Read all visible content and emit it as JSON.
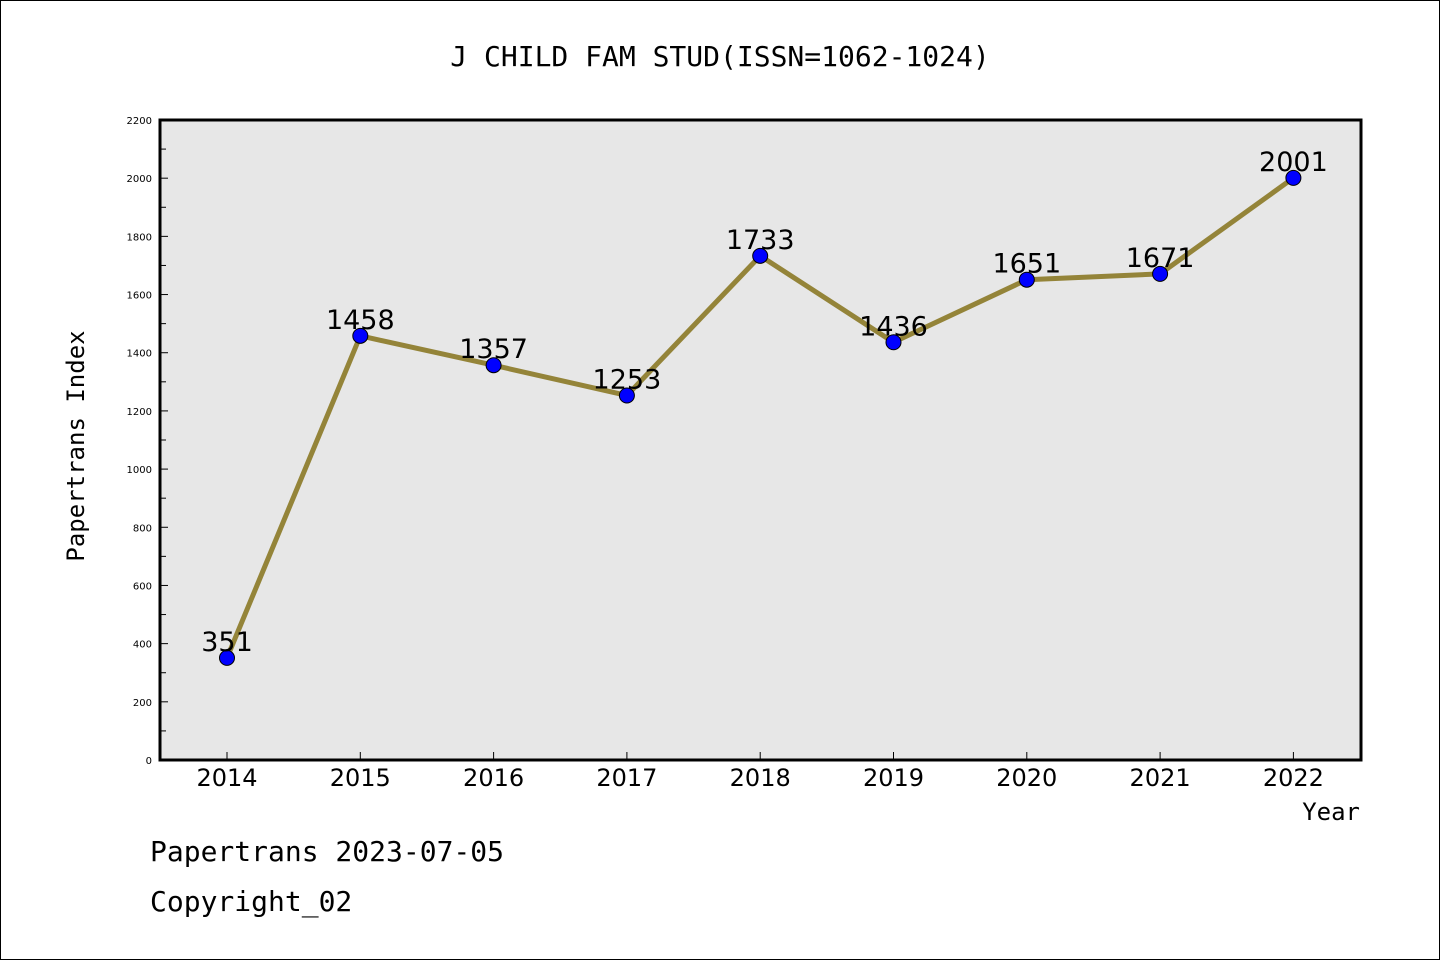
{
  "chart_data": {
    "type": "line",
    "title": "J CHILD FAM STUD(ISSN=1062-1024)",
    "xlabel": "Year",
    "ylabel": "Papertrans Index",
    "categories": [
      "2014",
      "2015",
      "2016",
      "2017",
      "2018",
      "2019",
      "2020",
      "2021",
      "2022"
    ],
    "series": [
      {
        "values": [
          351,
          1458,
          1357,
          1253,
          1733,
          1436,
          1651,
          1671,
          2001
        ],
        "line_color": "#948439",
        "marker_color": "#0000ff"
      }
    ],
    "data_labels": [
      "351",
      "1458",
      "1357",
      "1253",
      "1733",
      "1436",
      "1651",
      "1671",
      "2001"
    ],
    "ylim": [
      0,
      2200
    ],
    "yticks": [
      "0",
      "200",
      "400",
      "600",
      "800",
      "1000",
      "1200",
      "1400",
      "1600",
      "1800",
      "2000",
      "2200"
    ],
    "plot_background": "#e7e7e7",
    "grid": false,
    "legend": "none"
  },
  "footer": {
    "line1": "Papertrans 2023-07-05",
    "line2": "Copyright_02"
  }
}
